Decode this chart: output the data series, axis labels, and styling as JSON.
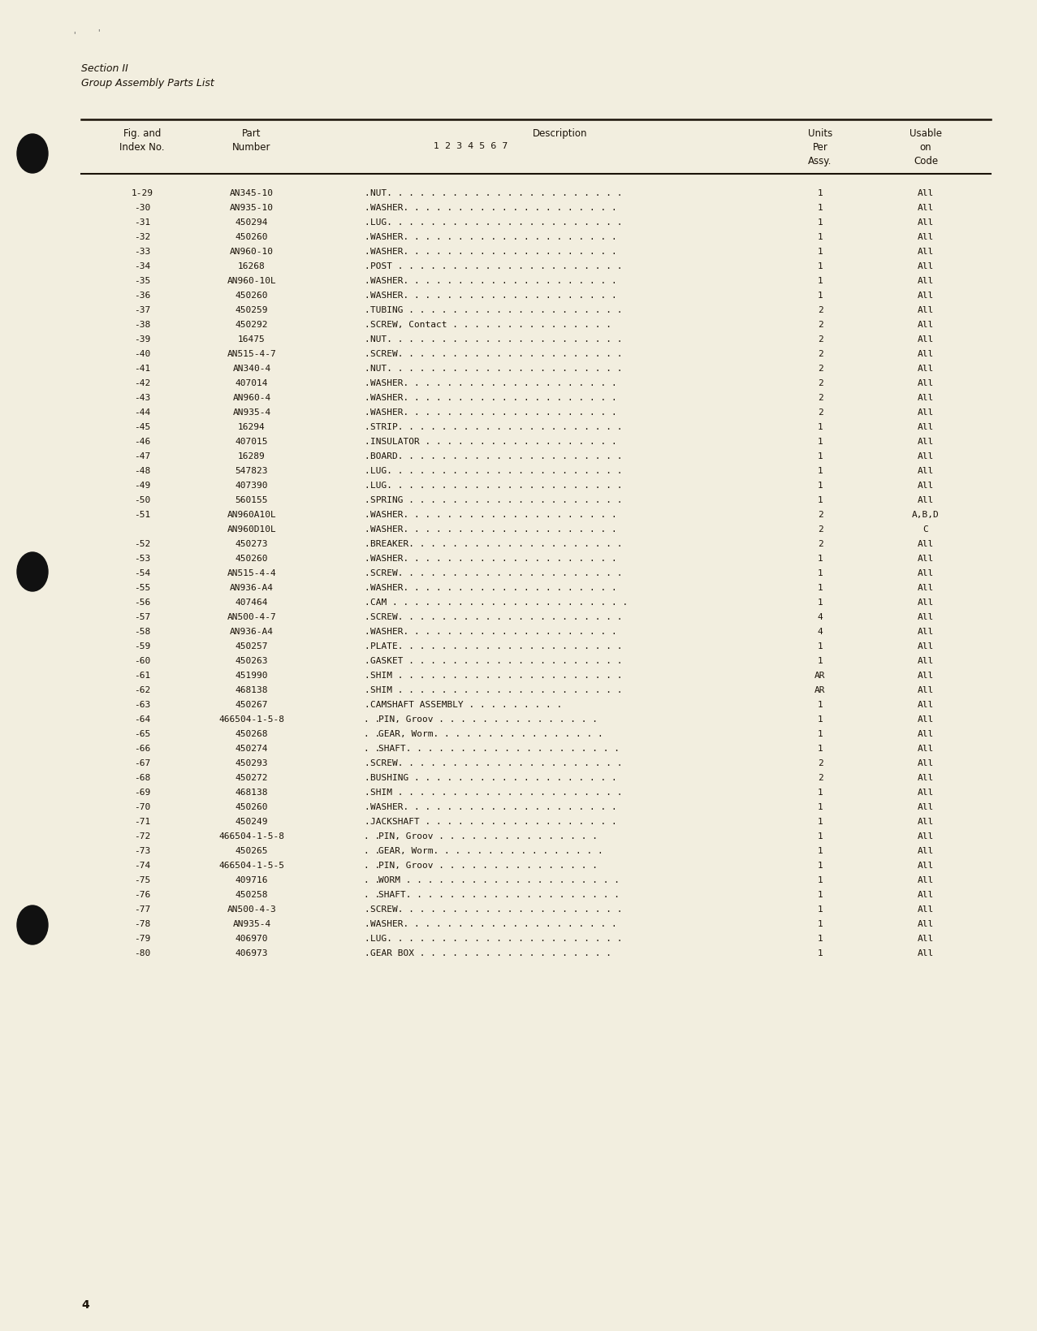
{
  "bg_color": "#f2eedf",
  "section_title": "Section II",
  "section_subtitle": "Group Assembly Parts List",
  "rows": [
    [
      "1-29",
      "AN345-10",
      ".",
      "NUT. . . . . . . . . . . . . . . . . . . . . .",
      "1",
      "All"
    ],
    [
      "-30",
      "AN935-10",
      ".",
      "WASHER. . . . . . . . . . . . . . . . . . . .",
      "1",
      "All"
    ],
    [
      "-31",
      "450294",
      ".",
      "LUG. . . . . . . . . . . . . . . . . . . . . .",
      "1",
      "All"
    ],
    [
      "-32",
      "450260",
      ".",
      "WASHER. . . . . . . . . . . . . . . . . . . .",
      "1",
      "All"
    ],
    [
      "-33",
      "AN960-10",
      ".",
      "WASHER. . . . . . . . . . . . . . . . . . . .",
      "1",
      "All"
    ],
    [
      "-34",
      "16268",
      ".",
      "POST . . . . . . . . . . . . . . . . . . . . .",
      "1",
      "All"
    ],
    [
      "-35",
      "AN960-10L",
      ".",
      "WASHER. . . . . . . . . . . . . . . . . . . .",
      "1",
      "All"
    ],
    [
      "-36",
      "450260",
      ".",
      "WASHER. . . . . . . . . . . . . . . . . . . .",
      "1",
      "All"
    ],
    [
      "-37",
      "450259",
      ".",
      "TUBING . . . . . . . . . . . . . . . . . . . .",
      "2",
      "All"
    ],
    [
      "-38",
      "450292",
      ".",
      "SCREW, Contact . . . . . . . . . . . . . . .",
      "2",
      "All"
    ],
    [
      "-39",
      "16475",
      ".",
      "NUT. . . . . . . . . . . . . . . . . . . . . .",
      "2",
      "All"
    ],
    [
      "-40",
      "AN515-4-7",
      ".",
      "SCREW. . . . . . . . . . . . . . . . . . . . .",
      "2",
      "All"
    ],
    [
      "-41",
      "AN340-4",
      ".",
      "NUT. . . . . . . . . . . . . . . . . . . . . .",
      "2",
      "All"
    ],
    [
      "-42",
      "407014",
      ".",
      "WASHER. . . . . . . . . . . . . . . . . . . .",
      "2",
      "All"
    ],
    [
      "-43",
      "AN960-4",
      ".",
      "WASHER. . . . . . . . . . . . . . . . . . . .",
      "2",
      "All"
    ],
    [
      "-44",
      "AN935-4",
      ".",
      "WASHER. . . . . . . . . . . . . . . . . . . .",
      "2",
      "All"
    ],
    [
      "-45",
      "16294",
      ".",
      "STRIP. . . . . . . . . . . . . . . . . . . . .",
      "1",
      "All"
    ],
    [
      "-46",
      "407015",
      ".",
      "INSULATOR . . . . . . . . . . . . . . . . . .",
      "1",
      "All"
    ],
    [
      "-47",
      "16289",
      ".",
      "BOARD. . . . . . . . . . . . . . . . . . . . .",
      "1",
      "All"
    ],
    [
      "-48",
      "547823",
      ".",
      "LUG. . . . . . . . . . . . . . . . . . . . . .",
      "1",
      "All"
    ],
    [
      "-49",
      "407390",
      ".",
      "LUG. . . . . . . . . . . . . . . . . . . . . .",
      "1",
      "All"
    ],
    [
      "-50",
      "560155",
      ".",
      "SPRING . . . . . . . . . . . . . . . . . . . .",
      "1",
      "All"
    ],
    [
      "-51",
      "AN960A10L",
      ".",
      "WASHER. . . . . . . . . . . . . . . . . . . .",
      "2",
      "A,B,D"
    ],
    [
      "",
      "AN960D10L",
      ".",
      "WASHER. . . . . . . . . . . . . . . . . . . .",
      "2",
      "C"
    ],
    [
      "-52",
      "450273",
      ".",
      "BREAKER. . . . . . . . . . . . . . . . . . . .",
      "2",
      "All"
    ],
    [
      "-53",
      "450260",
      ".",
      "WASHER. . . . . . . . . . . . . . . . . . . .",
      "1",
      "All"
    ],
    [
      "-54",
      "AN515-4-4",
      ".",
      "SCREW. . . . . . . . . . . . . . . . . . . . .",
      "1",
      "All"
    ],
    [
      "-55",
      "AN936-A4",
      ".",
      "WASHER. . . . . . . . . . . . . . . . . . . .",
      "1",
      "All"
    ],
    [
      "-56",
      "407464",
      ".",
      "CAM . . . . . . . . . . . . . . . . . . . . . .",
      "1",
      "All"
    ],
    [
      "-57",
      "AN500-4-7",
      ".",
      "SCREW. . . . . . . . . . . . . . . . . . . . .",
      "4",
      "All"
    ],
    [
      "-58",
      "AN936-A4",
      ".",
      "WASHER. . . . . . . . . . . . . . . . . . . .",
      "4",
      "All"
    ],
    [
      "-59",
      "450257",
      ".",
      "PLATE. . . . . . . . . . . . . . . . . . . . .",
      "1",
      "All"
    ],
    [
      "-60",
      "450263",
      ".",
      "GASKET . . . . . . . . . . . . . . . . . . . .",
      "1",
      "All"
    ],
    [
      "-61",
      "451990",
      ".",
      "SHIM . . . . . . . . . . . . . . . . . . . . .",
      "AR",
      "All"
    ],
    [
      "-62",
      "468138",
      ".",
      "SHIM . . . . . . . . . . . . . . . . . . . . .",
      "AR",
      "All"
    ],
    [
      "-63",
      "450267",
      ".",
      "CAMSHAFT ASSEMBLY . . . . . . . . .",
      "1",
      "All"
    ],
    [
      "-64",
      "466504-1-5-8",
      ". .",
      "PIN, Groov . . . . . . . . . . . . . . .",
      "1",
      "All"
    ],
    [
      "-65",
      "450268",
      ". .",
      "GEAR, Worm. . . . . . . . . . . . . . . .",
      "1",
      "All"
    ],
    [
      "-66",
      "450274",
      ". .",
      "SHAFT. . . . . . . . . . . . . . . . . . . .",
      "1",
      "All"
    ],
    [
      "-67",
      "450293",
      ".",
      "SCREW. . . . . . . . . . . . . . . . . . . . .",
      "2",
      "All"
    ],
    [
      "-68",
      "450272",
      ".",
      "BUSHING . . . . . . . . . . . . . . . . . . .",
      "2",
      "All"
    ],
    [
      "-69",
      "468138",
      ".",
      "SHIM . . . . . . . . . . . . . . . . . . . . .",
      "1",
      "All"
    ],
    [
      "-70",
      "450260",
      ".",
      "WASHER. . . . . . . . . . . . . . . . . . . .",
      "1",
      "All"
    ],
    [
      "-71",
      "450249",
      ".",
      "JACKSHAFT . . . . . . . . . . . . . . . . . .",
      "1",
      "All"
    ],
    [
      "-72",
      "466504-1-5-8",
      ". .",
      "PIN, Groov . . . . . . . . . . . . . . .",
      "1",
      "All"
    ],
    [
      "-73",
      "450265",
      ". .",
      "GEAR, Worm. . . . . . . . . . . . . . . .",
      "1",
      "All"
    ],
    [
      "-74",
      "466504-1-5-5",
      ". .",
      "PIN, Groov . . . . . . . . . . . . . . .",
      "1",
      "All"
    ],
    [
      "-75",
      "409716",
      ". .",
      "WORM . . . . . . . . . . . . . . . . . . . .",
      "1",
      "All"
    ],
    [
      "-76",
      "450258",
      ". .",
      "SHAFT. . . . . . . . . . . . . . . . . . . .",
      "1",
      "All"
    ],
    [
      "-77",
      "AN500-4-3",
      ".",
      "SCREW. . . . . . . . . . . . . . . . . . . . .",
      "1",
      "All"
    ],
    [
      "-78",
      "AN935-4",
      ".",
      "WASHER. . . . . . . . . . . . . . . . . . . .",
      "1",
      "All"
    ],
    [
      "-79",
      "406970",
      ".",
      "LUG. . . . . . . . . . . . . . . . . . . . . .",
      "1",
      "All"
    ],
    [
      "-80",
      "406973",
      ".",
      "GEAR BOX . . . . . . . . . . . . . . . . . .",
      "1",
      "All"
    ]
  ],
  "page_number": "4",
  "text_color": "#1a1208",
  "line_color": "#1a1208"
}
